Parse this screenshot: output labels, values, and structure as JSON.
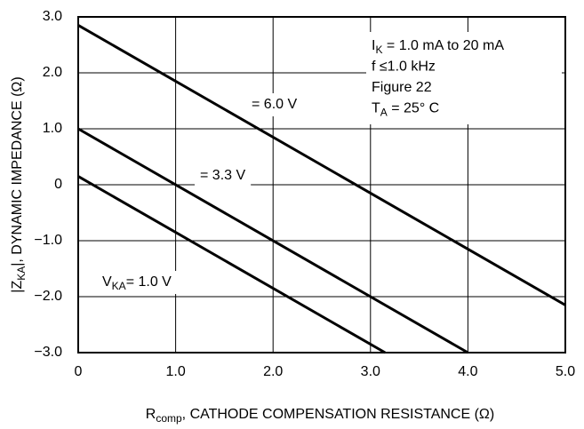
{
  "chart_data": {
    "type": "line",
    "xlabel": {
      "main": "R",
      "sub": "comp",
      "rest": ", CATHODE COMPENSATION RESISTANCE (Ω)"
    },
    "ylabel": {
      "main": "|Z",
      "sub": "KA",
      "rest": "|, DYNAMIC IMPEDANCE (Ω)"
    },
    "xlim": [
      0,
      5.0
    ],
    "ylim": [
      -3.0,
      3.0
    ],
    "xticks": [
      0,
      {
        "value": 1,
        "label": "1.0"
      },
      {
        "value": 2,
        "label": "2.0"
      },
      {
        "value": 3,
        "label": "3.0"
      },
      {
        "value": 4,
        "label": "4.0"
      },
      {
        "value": 5,
        "label": "5.0"
      }
    ],
    "yticks": [
      {
        "value": 3,
        "label": "3.0"
      },
      {
        "value": 2,
        "label": "2.0"
      },
      {
        "value": 1,
        "label": "1.0"
      },
      0,
      {
        "value": -1,
        "label": "−1.0"
      },
      {
        "value": -2,
        "label": "−2.0"
      },
      {
        "value": -3,
        "label": "−3.0"
      }
    ],
    "grid": true,
    "series": [
      {
        "name": "= 6.0 V",
        "color": "#000000",
        "x": [
          0,
          5.0
        ],
        "values": [
          2.85,
          -2.15
        ]
      },
      {
        "name": "= 3.3 V",
        "color": "#000000",
        "x": [
          0,
          4.0
        ],
        "values": [
          1.0,
          -3.0
        ]
      },
      {
        "name_prefix": "V",
        "name_sub": "KA",
        "name": "= 1.0 V",
        "color": "#000000",
        "x": [
          0,
          3.15
        ],
        "values": [
          0.15,
          -3.0
        ]
      }
    ],
    "annotations": [
      {
        "main": "I",
        "sub": "K",
        "rest": " = 1.0 mA to 20 mA"
      },
      {
        "main": "f ≤1.0 kHz"
      },
      {
        "main": "Figure 22"
      },
      {
        "main": "T",
        "sub": "A",
        "rest": " = 25° C"
      }
    ]
  }
}
